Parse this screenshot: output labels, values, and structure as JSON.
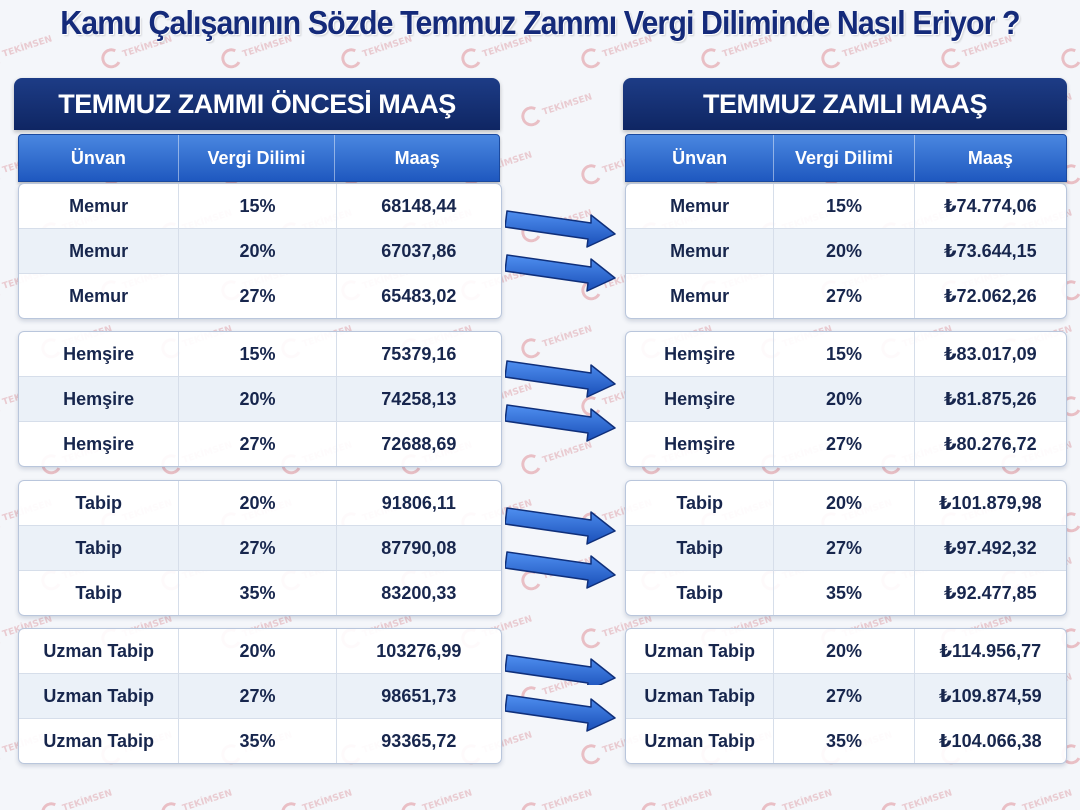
{
  "title": "Kamu Çalışanının Sözde Temmuz Zammı Vergi Diliminde Nasıl Eriyor ?",
  "watermark": "TEKİMSEN",
  "colors": {
    "title": "#142a7a",
    "panel_header": "#13296a",
    "column_header": "#2e6bd0",
    "arrow": "#1f5fd1"
  },
  "left_panel": {
    "title": "TEMMUZ ZAMMI ÖNCESİ MAAŞ",
    "columns": [
      "Ünvan",
      "Vergi Dilimi",
      "Maaş"
    ],
    "groups": [
      [
        [
          "Memur",
          "15%",
          "68148,44"
        ],
        [
          "Memur",
          "20%",
          "67037,86"
        ],
        [
          "Memur",
          "27%",
          "65483,02"
        ]
      ],
      [
        [
          "Hemşire",
          "15%",
          "75379,16"
        ],
        [
          "Hemşire",
          "20%",
          "74258,13"
        ],
        [
          "Hemşire",
          "27%",
          "72688,69"
        ]
      ],
      [
        [
          "Tabip",
          "20%",
          "91806,11"
        ],
        [
          "Tabip",
          "27%",
          "87790,08"
        ],
        [
          "Tabip",
          "35%",
          "83200,33"
        ]
      ],
      [
        [
          "Uzman Tabip",
          "20%",
          "103276,99"
        ],
        [
          "Uzman Tabip",
          "27%",
          "98651,73"
        ],
        [
          "Uzman Tabip",
          "35%",
          "93365,72"
        ]
      ]
    ]
  },
  "right_panel": {
    "title": "TEMMUZ ZAMLI MAAŞ",
    "columns": [
      "Ünvan",
      "Vergi Dilimi",
      "Maaş"
    ],
    "groups": [
      [
        [
          "Memur",
          "15%",
          "₺74.774,06"
        ],
        [
          "Memur",
          "20%",
          "₺73.644,15"
        ],
        [
          "Memur",
          "27%",
          "₺72.062,26"
        ]
      ],
      [
        [
          "Hemşire",
          "15%",
          "₺83.017,09"
        ],
        [
          "Hemşire",
          "20%",
          "₺81.875,26"
        ],
        [
          "Hemşire",
          "27%",
          "₺80.276,72"
        ]
      ],
      [
        [
          "Tabip",
          "20%",
          "₺101.879,98"
        ],
        [
          "Tabip",
          "27%",
          "₺97.492,32"
        ],
        [
          "Tabip",
          "35%",
          "₺92.477,85"
        ]
      ],
      [
        [
          "Uzman Tabip",
          "20%",
          "₺114.956,77"
        ],
        [
          "Uzman Tabip",
          "27%",
          "₺109.874,59"
        ],
        [
          "Uzman Tabip",
          "35%",
          "₺104.066,38"
        ]
      ]
    ]
  }
}
